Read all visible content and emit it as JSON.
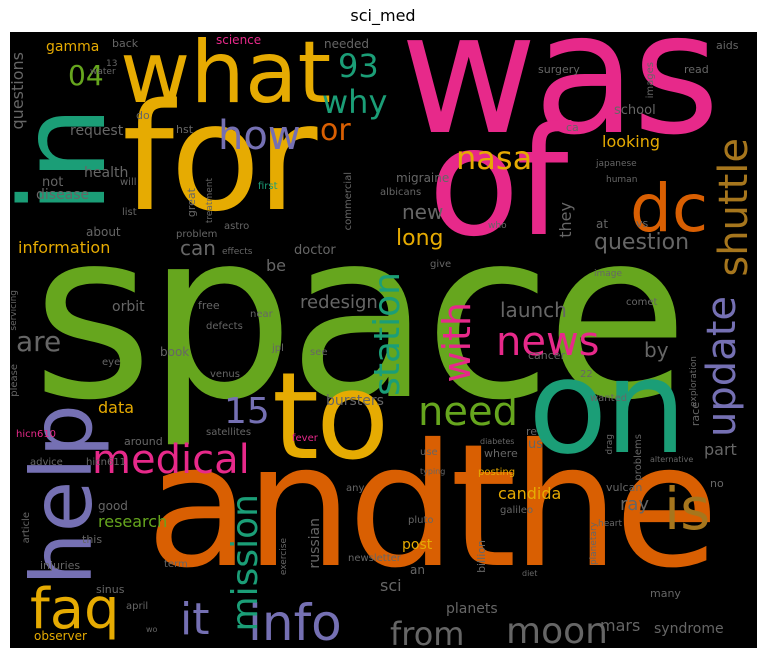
{
  "title": "sci_med",
  "colors": {
    "background": "#000000",
    "palette": [
      "#e7298a",
      "#e6ab02",
      "#66a61e",
      "#d95f02",
      "#7570b3",
      "#1b9e77",
      "#a6761d",
      "#666666"
    ]
  },
  "words": {
    "space": "space",
    "was": "was",
    "for": "for",
    "and": "and",
    "the": "the",
    "of": "of",
    "on": "on",
    "to": "to",
    "in": "in",
    "help": "help",
    "what": "what",
    "dc": "dc",
    "faq": "faq",
    "info": "info",
    "is": "is",
    "medical": "medical",
    "how": "how",
    "shuttle": "shuttle",
    "update": "update",
    "news": "news",
    "station": "station",
    "mission": "mission",
    "with": "with",
    "need": "need",
    "moon": "moon",
    "from": "from",
    "it": "it",
    "nasa": "nasa",
    "why": "why",
    "or": "or",
    "n93": "93",
    "n04": "04",
    "are": "are",
    "n15": "15",
    "question": "question",
    "launch": "launch",
    "redesign": "redesign",
    "can": "can",
    "long": "long",
    "new": "new",
    "by": "by",
    "information": "information",
    "questions": "questions",
    "looking": "looking",
    "mars": "mars",
    "syndrome": "syndrome",
    "candida": "candida",
    "research": "research",
    "bursters": "bursters",
    "data": "data",
    "ray": "ray",
    "part": "part",
    "post": "post",
    "sci": "sci",
    "planets": "planets",
    "russian": "russian",
    "orbit": "orbit",
    "doctor": "doctor",
    "be": "be",
    "they": "they",
    "gamma": "gamma",
    "request": "request",
    "health": "health",
    "disease": "disease",
    "not": "not",
    "about": "about",
    "school": "school",
    "migraine": "migraine",
    "science": "science",
    "needed": "needed",
    "surgery": "surgery",
    "images": "images",
    "read": "read",
    "aids": "aids",
    "back": "back",
    "do": "do",
    "hst": "hst",
    "ca": "ca",
    "great": "great",
    "first": "first",
    "commercial": "commercial",
    "albicans": "albicans",
    "at": "at",
    "vs": "vs",
    "japanese": "japanese",
    "human": "human",
    "will": "will",
    "list": "list",
    "treatment": "treatment",
    "problem": "problem",
    "effects": "effects",
    "astro": "astro",
    "who": "who",
    "give": "give",
    "image": "image",
    "comet": "comet",
    "exploration": "exploration",
    "free": "free",
    "defects": "defects",
    "near": "near",
    "jpl": "jpl",
    "book": "book",
    "see": "see",
    "eye": "eye",
    "cancer": "cancer",
    "venus": "venus",
    "please": "please",
    "wanted": "wanted",
    "n22": "22",
    "servicing": "servicing",
    "around": "around",
    "satellites": "satellites",
    "fever": "fever",
    "re": "re",
    "us": "us",
    "race": "race",
    "hicn610": "hicn610",
    "diabetes": "diabetes",
    "use": "use",
    "where": "where",
    "problems": "problems",
    "drag": "drag",
    "alternative": "alternative",
    "advice": "advice",
    "hicn611": "hicn611",
    "typing": "typing",
    "posting": "posting",
    "any": "any",
    "vulcan": "vulcan",
    "no": "no",
    "good": "good",
    "this": "this",
    "article": "article",
    "galileo": "galileo",
    "heart": "heart",
    "pluto": "pluto",
    "injuries": "injuries",
    "term": "term",
    "newsletter": "newsletter",
    "exercise": "exercise",
    "an": "an",
    "billion": "billion",
    "planetary": "planetary",
    "diet": "diet",
    "sinus": "sinus",
    "april": "april",
    "observer": "observer",
    "wo": "wo",
    "many": "many",
    "water": "water",
    "n13": "13"
  }
}
